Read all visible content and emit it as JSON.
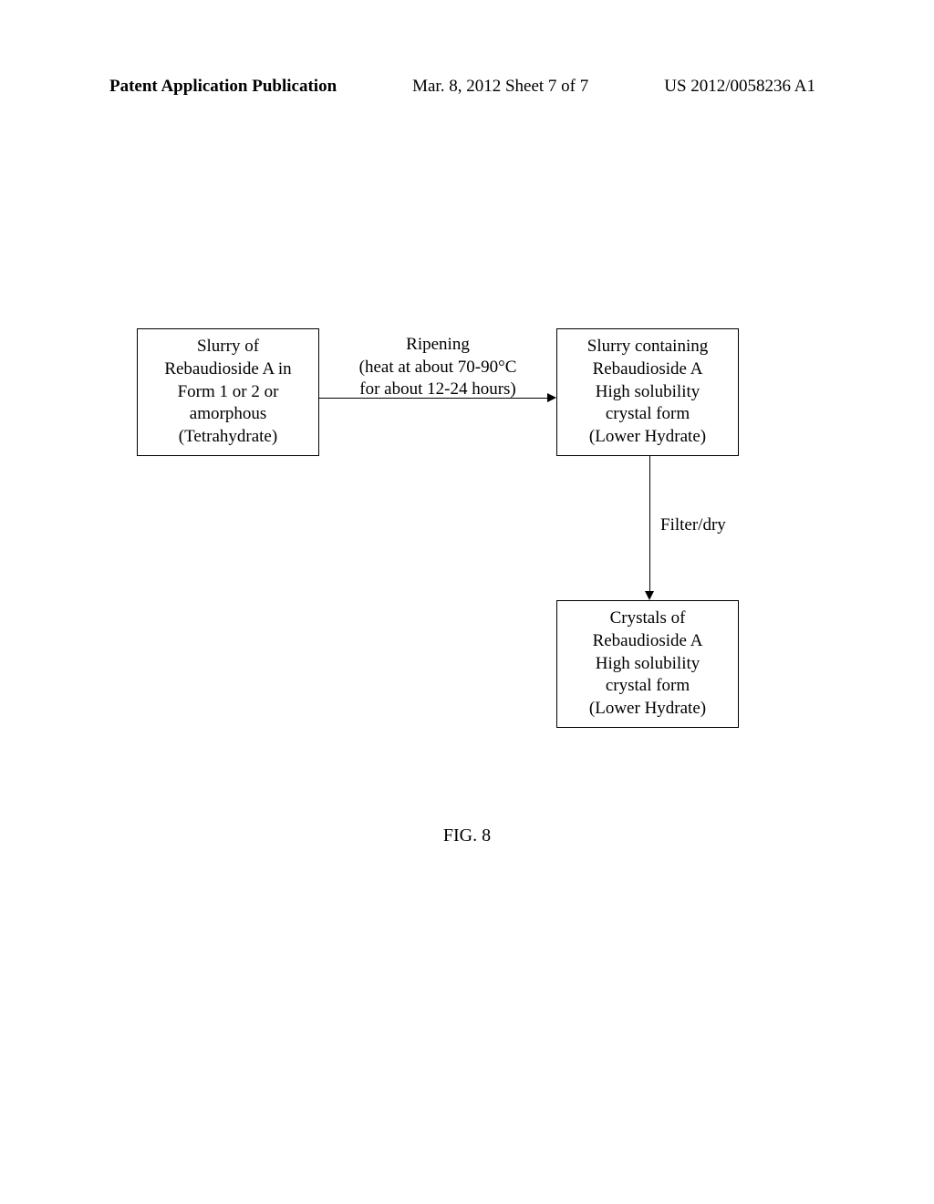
{
  "header": {
    "left": "Patent Application Publication",
    "center": "Mar. 8, 2012  Sheet 7 of 7",
    "right": "US 2012/0058236 A1"
  },
  "flowchart": {
    "type": "flowchart",
    "nodes": {
      "box1": {
        "lines": [
          "Slurry of",
          "Rebaudioside A in",
          "Form 1 or 2  or",
          "amorphous",
          "(Tetrahydrate)"
        ],
        "border_color": "#000000",
        "background_color": "#ffffff"
      },
      "box2": {
        "lines": [
          "Slurry containing",
          "Rebaudioside A",
          "High solubility",
          "crystal form",
          "(Lower Hydrate)"
        ],
        "border_color": "#000000",
        "background_color": "#ffffff"
      },
      "box3": {
        "lines": [
          "Crystals of",
          "Rebaudioside A",
          "High solubility",
          "crystal form",
          "(Lower Hydrate)"
        ],
        "border_color": "#000000",
        "background_color": "#ffffff"
      }
    },
    "edges": {
      "e1": {
        "from": "box1",
        "to": "box2",
        "label_lines": [
          "Ripening",
          "(heat at about 70-90°C",
          "for about 12-24 hours)"
        ]
      },
      "e2": {
        "from": "box2",
        "to": "box3",
        "label": "Filter/dry"
      }
    },
    "font_family": "Times New Roman",
    "font_size_pt": 14,
    "line_color": "#000000"
  },
  "figure_label": "FIG. 8"
}
